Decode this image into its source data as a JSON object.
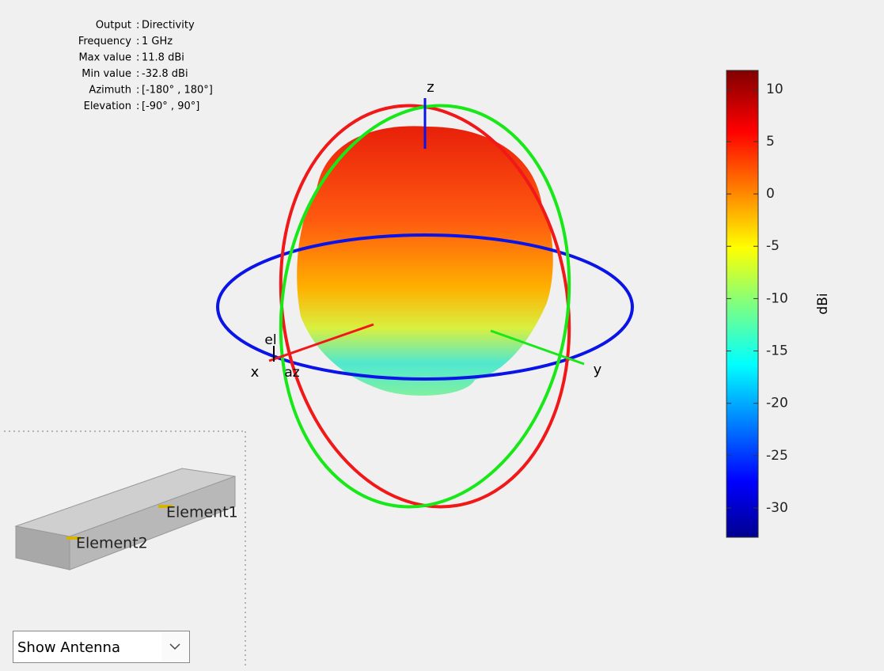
{
  "info": [
    {
      "label": "Output",
      "value": "Directivity"
    },
    {
      "label": "Frequency",
      "value": "1 GHz"
    },
    {
      "label": "Max value",
      "value": "11.8 dBi"
    },
    {
      "label": "Min value",
      "value": "-32.8 dBi"
    },
    {
      "label": "Azimuth",
      "value": "[-180° , 180°]"
    },
    {
      "label": "Elevation",
      "value": "[-90° , 90°]"
    }
  ],
  "axes": {
    "x": "x",
    "y": "y",
    "z": "z",
    "el": "el",
    "az": "az"
  },
  "colorbar": {
    "label": "dBi",
    "lim": [
      -32.8,
      11.8
    ],
    "ticks": [
      10,
      5,
      0,
      -5,
      -10,
      -15,
      -20,
      -25,
      -30
    ]
  },
  "antenna": {
    "elements": [
      "Element1",
      "Element2"
    ]
  },
  "dropdown": {
    "selected": "Show Antenna"
  }
}
